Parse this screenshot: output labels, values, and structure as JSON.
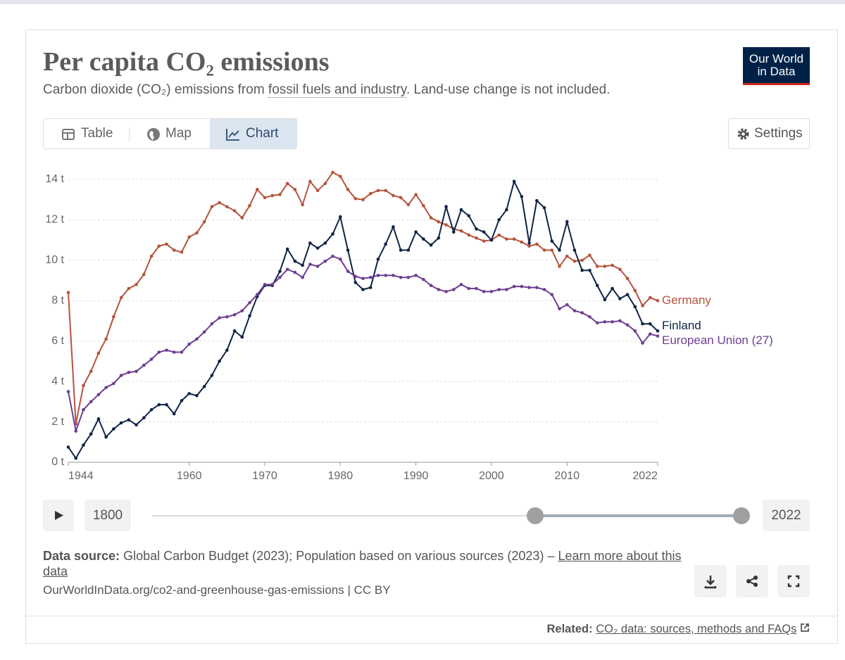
{
  "logo": {
    "line1": "Our World",
    "line2": "in Data"
  },
  "tabs": [
    "Table",
    "Map",
    "Chart"
  ],
  "settings_button": "Settings",
  "timeline": {
    "start_label": "1800",
    "end_label": "2022"
  },
  "footer": {
    "source_label": "Data source:",
    "source_text": "Global Carbon Budget (2023); Population based on various sources (2023) – ",
    "learn_more": "Learn more about this data",
    "url_line": "OurWorldInData.org/co2-and-greenhouse-gas-emissions | CC BY"
  },
  "related": {
    "label": "Related:",
    "link": "CO₂ data: sources, methods and FAQs"
  },
  "chart_data": {
    "type": "line",
    "title": "Per capita CO₂ emissions",
    "subtitle": [
      "Carbon dioxide (CO₂) emissions from ",
      "fossil fuels and industry",
      ". Land-use change is not included."
    ],
    "x": [
      1944,
      1945,
      1946,
      1947,
      1948,
      1949,
      1950,
      1951,
      1952,
      1953,
      1954,
      1955,
      1956,
      1957,
      1958,
      1959,
      1960,
      1961,
      1962,
      1963,
      1964,
      1965,
      1966,
      1967,
      1968,
      1969,
      1970,
      1971,
      1972,
      1973,
      1974,
      1975,
      1976,
      1977,
      1978,
      1979,
      1980,
      1981,
      1982,
      1983,
      1984,
      1985,
      1986,
      1987,
      1988,
      1989,
      1990,
      1991,
      1992,
      1993,
      1994,
      1995,
      1996,
      1997,
      1998,
      1999,
      2000,
      2001,
      2002,
      2003,
      2004,
      2005,
      2006,
      2007,
      2008,
      2009,
      2010,
      2011,
      2012,
      2013,
      2014,
      2015,
      2016,
      2017,
      2018,
      2019,
      2020,
      2021,
      2022
    ],
    "xlim": [
      1944,
      2022
    ],
    "xticks": [
      1944,
      1960,
      1970,
      1980,
      1990,
      2000,
      2010,
      2022
    ],
    "ylim": [
      0,
      14
    ],
    "yticks": [
      {
        "value": 0,
        "label": "0 t"
      },
      {
        "value": 2,
        "label": "2 t"
      },
      {
        "value": 4,
        "label": "4 t"
      },
      {
        "value": 6,
        "label": "6 t"
      },
      {
        "value": 8,
        "label": "8 t"
      },
      {
        "value": 10,
        "label": "10 t"
      },
      {
        "value": 12,
        "label": "12 t"
      },
      {
        "value": 14,
        "label": "14 t"
      }
    ],
    "grid": true,
    "series": [
      {
        "name": "Germany",
        "color": "#b5543b",
        "values": [
          8.4,
          1.9,
          3.8,
          4.5,
          5.4,
          6.1,
          7.2,
          8.15,
          8.6,
          8.8,
          9.3,
          10.2,
          10.7,
          10.8,
          10.5,
          10.4,
          11.15,
          11.35,
          11.9,
          12.65,
          12.85,
          12.65,
          12.45,
          12.1,
          12.7,
          13.5,
          13.1,
          13.2,
          13.25,
          13.8,
          13.5,
          12.75,
          13.9,
          13.45,
          13.8,
          14.35,
          14.15,
          13.5,
          13.05,
          13.0,
          13.3,
          13.45,
          13.45,
          13.2,
          13.1,
          12.75,
          13.25,
          12.7,
          12.1,
          11.9,
          11.75,
          11.55,
          11.45,
          11.25,
          11.1,
          10.95,
          11.0,
          11.25,
          11.05,
          11.05,
          10.9,
          10.7,
          10.8,
          10.5,
          10.5,
          9.7,
          10.2,
          9.95,
          10.0,
          10.25,
          9.7,
          9.7,
          9.75,
          9.55,
          9.1,
          8.5,
          7.75,
          8.15,
          8.0
        ]
      },
      {
        "name": "Finland",
        "color": "#0f2346",
        "values": [
          0.75,
          0.2,
          0.85,
          1.4,
          2.15,
          1.25,
          1.65,
          1.95,
          2.1,
          1.85,
          2.2,
          2.6,
          2.85,
          2.85,
          2.4,
          3.05,
          3.4,
          3.3,
          3.75,
          4.3,
          5.0,
          5.55,
          6.5,
          6.2,
          7.25,
          8.2,
          8.75,
          8.75,
          9.45,
          10.55,
          9.95,
          9.75,
          10.85,
          10.6,
          10.85,
          11.3,
          12.15,
          10.5,
          8.9,
          8.55,
          8.65,
          10.05,
          10.8,
          11.65,
          10.5,
          10.5,
          11.4,
          11.05,
          10.75,
          11.1,
          12.65,
          11.4,
          12.5,
          12.2,
          11.55,
          11.4,
          11.0,
          12.0,
          12.5,
          13.9,
          13.15,
          10.85,
          12.95,
          12.6,
          10.95,
          10.5,
          11.9,
          10.5,
          9.5,
          9.5,
          8.75,
          8.05,
          8.6,
          8.1,
          8.3,
          7.7,
          6.85,
          6.85,
          6.5
        ]
      },
      {
        "name": "European Union (27)",
        "color": "#6d3e91",
        "values": [
          3.5,
          1.55,
          2.6,
          3.0,
          3.35,
          3.7,
          3.9,
          4.3,
          4.45,
          4.5,
          4.8,
          5.1,
          5.45,
          5.55,
          5.45,
          5.45,
          5.85,
          6.1,
          6.45,
          6.85,
          7.15,
          7.2,
          7.3,
          7.5,
          7.9,
          8.3,
          8.8,
          8.8,
          9.15,
          9.55,
          9.4,
          9.15,
          9.8,
          9.7,
          9.95,
          10.2,
          10.05,
          9.45,
          9.2,
          9.1,
          9.15,
          9.25,
          9.25,
          9.25,
          9.15,
          9.15,
          9.25,
          9.05,
          8.75,
          8.55,
          8.45,
          8.55,
          8.8,
          8.6,
          8.6,
          8.45,
          8.45,
          8.55,
          8.55,
          8.7,
          8.7,
          8.65,
          8.65,
          8.55,
          8.3,
          7.6,
          7.8,
          7.5,
          7.4,
          7.2,
          6.9,
          6.95,
          6.95,
          7.0,
          6.8,
          6.5,
          5.9,
          6.35,
          6.25
        ]
      }
    ]
  }
}
